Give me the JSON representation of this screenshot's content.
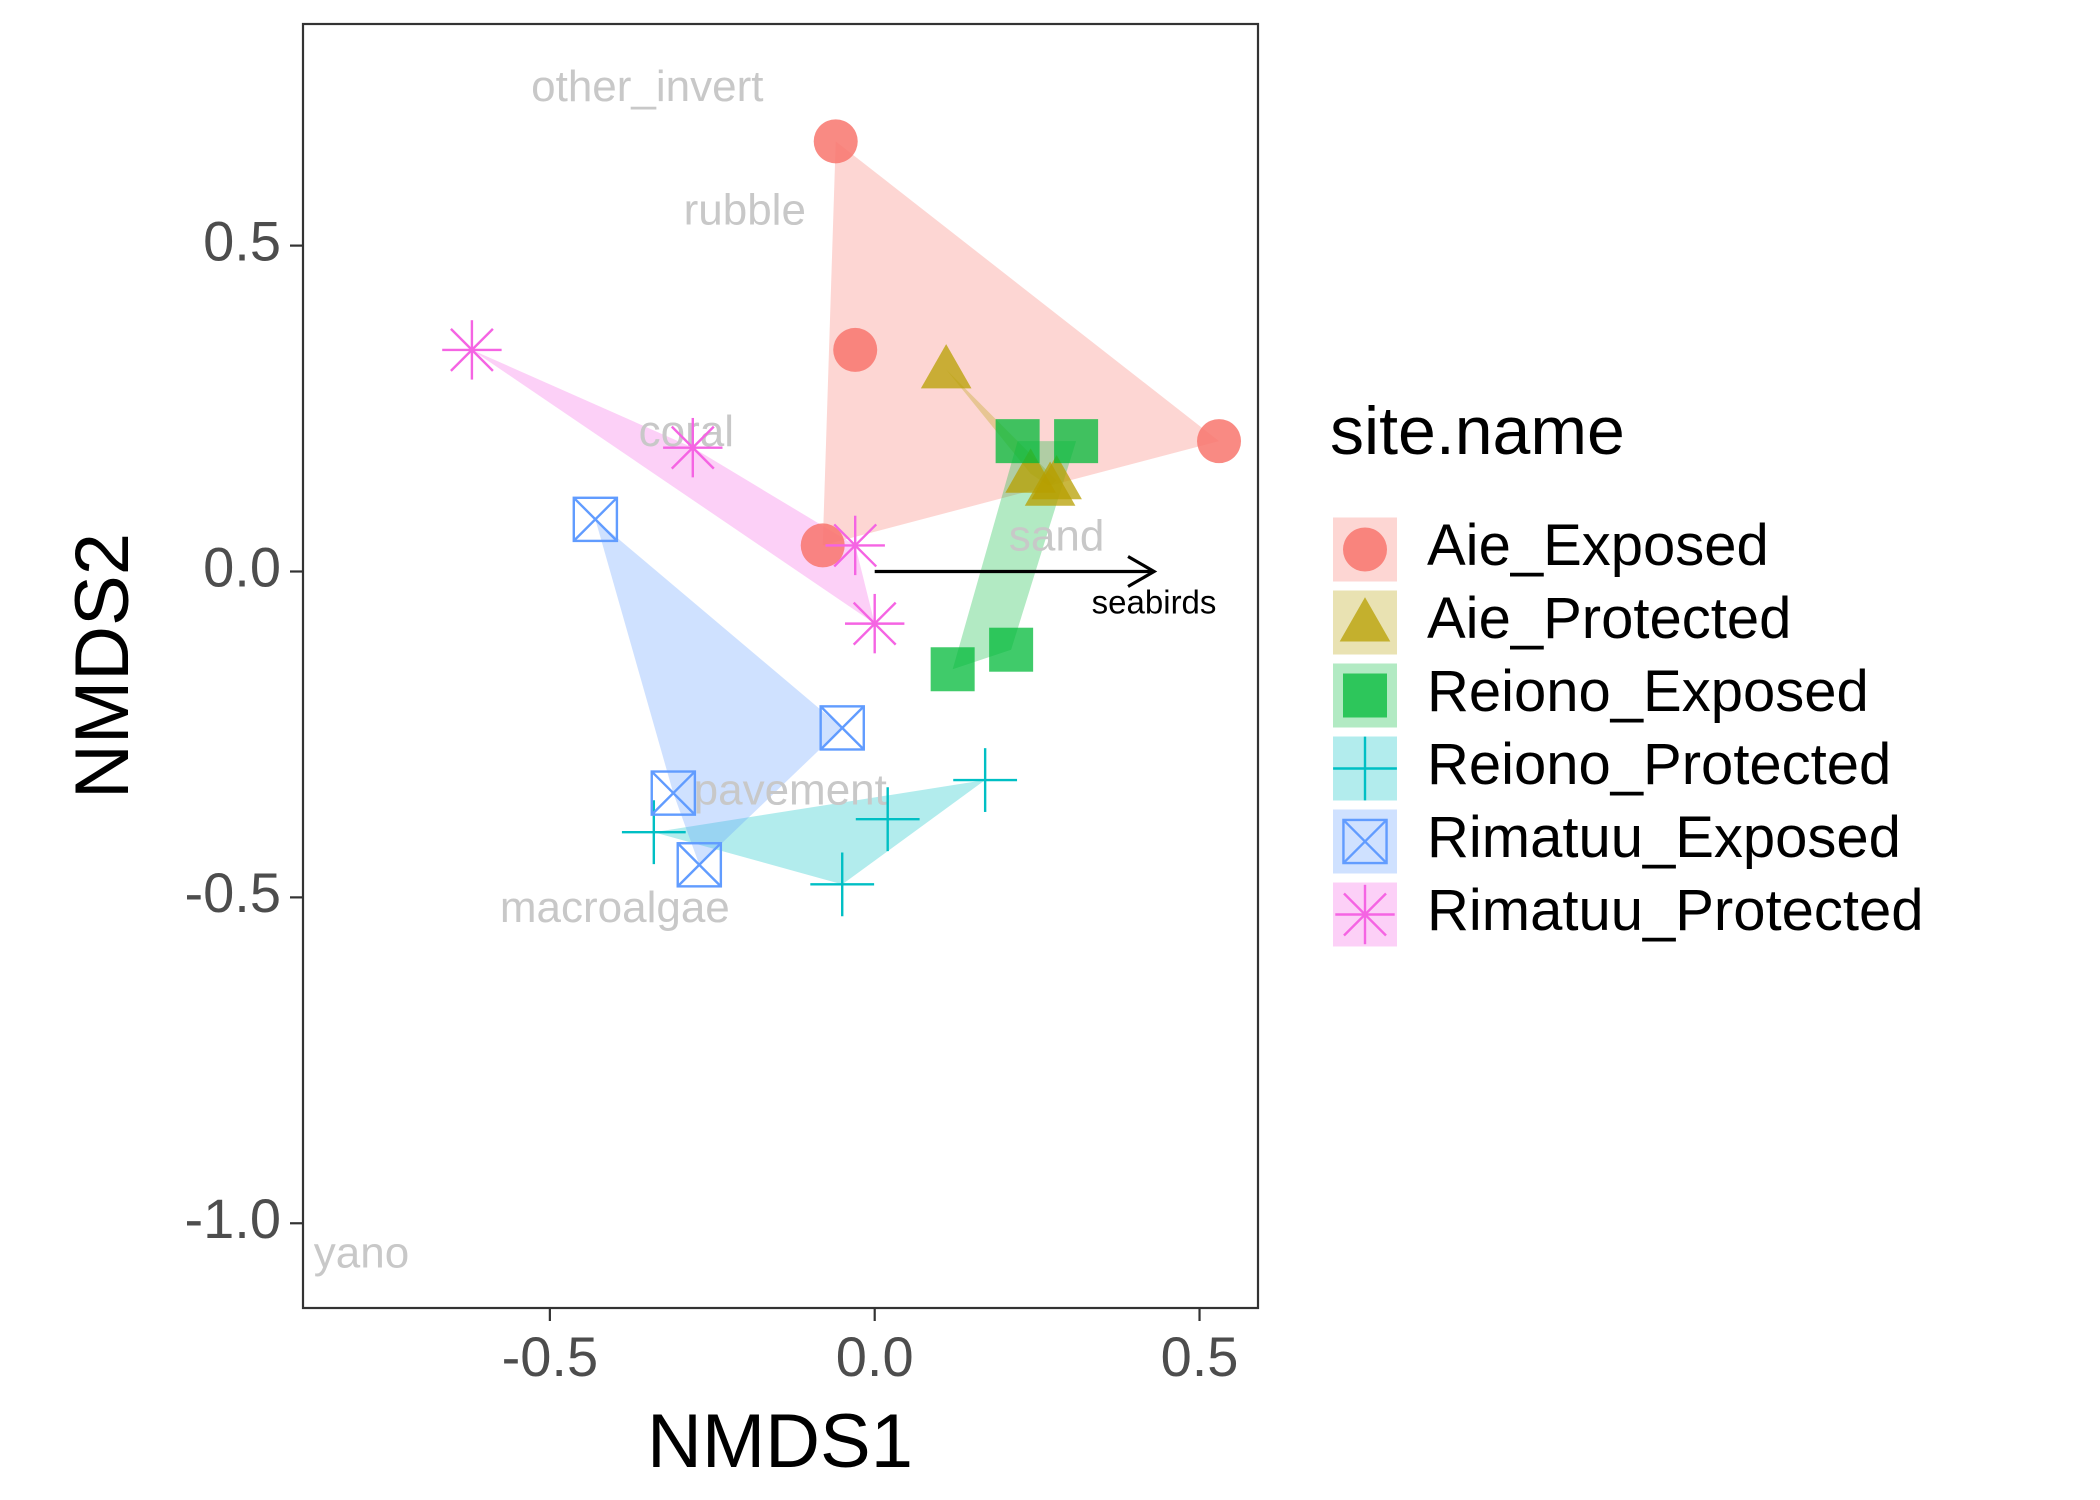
{
  "chart_data": {
    "type": "scatter",
    "xlabel": "NMDS1",
    "ylabel": "NMDS2",
    "xlim": [
      -0.88,
      0.59
    ],
    "ylim": [
      -1.13,
      0.84
    ],
    "xticks": [
      -0.5,
      0.0,
      0.5
    ],
    "yticks": [
      -1.0,
      -0.5,
      0.0,
      0.5
    ],
    "xtick_labels": [
      "-0.5",
      "0.0",
      "0.5"
    ],
    "ytick_labels": [
      "-1.0",
      "-0.5",
      "0.0",
      "0.5"
    ],
    "legend": {
      "title": "site.name",
      "position": "right"
    },
    "grid": false,
    "hulls": "convex hull per group, semi-transparent fill",
    "series": [
      {
        "name": "Aie_Exposed",
        "color": "#F8766D",
        "shape": "circle",
        "points": [
          [
            -0.06,
            0.66
          ],
          [
            -0.03,
            0.34
          ],
          [
            0.53,
            0.2
          ],
          [
            -0.08,
            0.04
          ]
        ]
      },
      {
        "name": "Aie_Protected",
        "color": "#B79F00",
        "shape": "triangle",
        "points": [
          [
            0.11,
            0.31
          ],
          [
            0.24,
            0.15
          ],
          [
            0.27,
            0.13
          ],
          [
            0.28,
            0.14
          ]
        ]
      },
      {
        "name": "Reiono_Exposed",
        "color": "#00BA38",
        "shape": "square",
        "points": [
          [
            0.22,
            0.2
          ],
          [
            0.31,
            0.2
          ],
          [
            0.12,
            -0.15
          ],
          [
            0.21,
            -0.12
          ]
        ]
      },
      {
        "name": "Reiono_Protected",
        "color": "#00BFC4",
        "shape": "plus",
        "points": [
          [
            0.17,
            -0.32
          ],
          [
            0.02,
            -0.38
          ],
          [
            -0.34,
            -0.4
          ],
          [
            -0.05,
            -0.48
          ]
        ]
      },
      {
        "name": "Rimatuu_Exposed",
        "color": "#619CFF",
        "shape": "square-cross",
        "points": [
          [
            -0.43,
            0.08
          ],
          [
            -0.05,
            -0.24
          ],
          [
            -0.31,
            -0.34
          ],
          [
            -0.27,
            -0.45
          ]
        ]
      },
      {
        "name": "Rimatuu_Protected",
        "color": "#F564E3",
        "shape": "asterisk",
        "points": [
          [
            -0.62,
            0.34
          ],
          [
            -0.28,
            0.19
          ],
          [
            -0.03,
            0.04
          ],
          [
            0.0,
            -0.08
          ]
        ]
      }
    ],
    "vector_labels": [
      {
        "label": "other_invert",
        "x": -0.35,
        "y": 0.74
      },
      {
        "label": "rubble",
        "x": -0.2,
        "y": 0.55
      },
      {
        "label": "coral",
        "x": -0.29,
        "y": 0.21
      },
      {
        "label": "sand",
        "x": 0.28,
        "y": 0.05
      },
      {
        "label": "pavement",
        "x": -0.13,
        "y": -0.34
      },
      {
        "label": "macroalgae",
        "x": -0.4,
        "y": -0.52
      },
      {
        "label": "yano",
        "x": -0.79,
        "y": -1.05
      }
    ],
    "arrow": {
      "label": "seabirds",
      "x0": 0.0,
      "y0": 0.0,
      "x1": 0.43,
      "y1": 0.0
    }
  }
}
